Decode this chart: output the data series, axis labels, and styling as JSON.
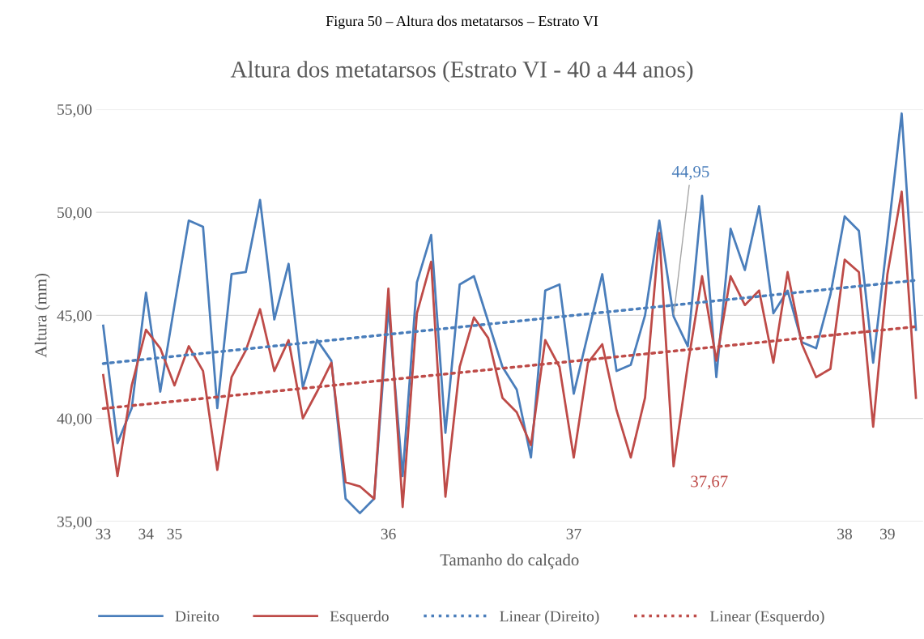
{
  "chart_data": {
    "type": "line",
    "title": "Figura 50 – Altura dos metatarsos – Estrato VI",
    "subtitle": "Altura dos metatarsos (Estrato VI - 40 a 44 anos)",
    "xlabel": "Tamanho do calçado",
    "ylabel": "Altura (mm)",
    "categories": [
      "33",
      null,
      null,
      "34",
      null,
      "35",
      null,
      null,
      null,
      null,
      null,
      null,
      null,
      null,
      null,
      null,
      null,
      null,
      null,
      null,
      "36",
      null,
      null,
      null,
      null,
      null,
      null,
      null,
      null,
      null,
      null,
      null,
      null,
      "37",
      null,
      null,
      null,
      null,
      null,
      null,
      null,
      null,
      null,
      null,
      null,
      null,
      null,
      null,
      null,
      null,
      null,
      null,
      "38",
      null,
      null,
      "39",
      null,
      null
    ],
    "series": [
      {
        "name": "Direito",
        "color": "#4a7ebb",
        "line_style": "solid",
        "values": [
          44.5,
          38.8,
          40.5,
          46.1,
          41.3,
          45.5,
          49.6,
          49.3,
          40.5,
          47.0,
          47.1,
          50.6,
          44.8,
          47.5,
          41.5,
          43.8,
          42.8,
          36.1,
          35.4,
          36.1,
          45.4,
          37.2,
          46.6,
          48.9,
          39.3,
          46.5,
          46.9,
          44.7,
          42.5,
          41.4,
          38.1,
          46.2,
          46.5,
          41.2,
          44.1,
          47.0,
          42.3,
          42.6,
          45.0,
          49.6,
          44.95,
          43.5,
          50.8,
          42.0,
          49.2,
          47.2,
          50.3,
          45.1,
          46.2,
          43.7,
          43.4,
          46.0,
          49.8,
          49.1,
          42.7,
          48.7,
          54.8,
          44.3
        ],
        "value_labels": [
          null,
          null,
          null,
          null,
          null,
          null,
          null,
          null,
          null,
          null,
          null,
          null,
          null,
          null,
          null,
          null,
          null,
          null,
          null,
          null,
          null,
          null,
          null,
          null,
          null,
          null,
          null,
          null,
          null,
          null,
          null,
          null,
          null,
          null,
          null,
          null,
          null,
          null,
          null,
          null,
          "44,95",
          null,
          null,
          null,
          null,
          null,
          null,
          null,
          null,
          null,
          null,
          null,
          null,
          null,
          null,
          null,
          null,
          null
        ]
      },
      {
        "name": "Esquerdo",
        "color": "#be4b48",
        "line_style": "solid",
        "values": [
          42.1,
          37.2,
          41.6,
          44.3,
          43.4,
          41.6,
          43.5,
          42.3,
          37.5,
          42.0,
          43.3,
          45.3,
          42.3,
          43.8,
          40.0,
          41.3,
          42.7,
          36.9,
          36.7,
          36.1,
          46.3,
          35.7,
          45.1,
          47.6,
          36.2,
          42.5,
          44.9,
          43.9,
          41.0,
          40.3,
          38.7,
          43.8,
          42.5,
          38.1,
          42.7,
          43.6,
          40.4,
          38.1,
          41.0,
          49.0,
          37.67,
          42.6,
          46.9,
          42.8,
          46.9,
          45.5,
          46.2,
          42.7,
          47.1,
          43.6,
          42.0,
          42.4,
          47.7,
          47.1,
          39.6,
          47.0,
          51.0,
          41.0
        ],
        "value_labels": [
          null,
          null,
          null,
          null,
          null,
          null,
          null,
          null,
          null,
          null,
          null,
          null,
          null,
          null,
          null,
          null,
          null,
          null,
          null,
          null,
          null,
          null,
          null,
          null,
          null,
          null,
          null,
          null,
          null,
          null,
          null,
          null,
          null,
          null,
          null,
          null,
          null,
          null,
          null,
          null,
          "37,67",
          null,
          null,
          null,
          null,
          null,
          null,
          null,
          null,
          null,
          null,
          null,
          null,
          null,
          null,
          null,
          null,
          null
        ]
      },
      {
        "name": "Linear (Direito)",
        "color": "#4a7ebb",
        "line_style": "dotted",
        "values": [
          42.66,
          null,
          null,
          null,
          null,
          null,
          null,
          null,
          null,
          null,
          null,
          null,
          null,
          null,
          null,
          null,
          null,
          null,
          null,
          null,
          null,
          null,
          null,
          null,
          null,
          null,
          null,
          null,
          null,
          null,
          null,
          null,
          null,
          null,
          null,
          null,
          null,
          null,
          null,
          null,
          null,
          null,
          null,
          null,
          null,
          null,
          null,
          null,
          null,
          null,
          null,
          null,
          null,
          null,
          null,
          null,
          null,
          46.7
        ]
      },
      {
        "name": "Linear (Esquerdo)",
        "color": "#be4b48",
        "line_style": "dotted",
        "values": [
          40.48,
          null,
          null,
          null,
          null,
          null,
          null,
          null,
          null,
          null,
          null,
          null,
          null,
          null,
          null,
          null,
          null,
          null,
          null,
          null,
          null,
          null,
          null,
          null,
          null,
          null,
          null,
          null,
          null,
          null,
          null,
          null,
          null,
          null,
          null,
          null,
          null,
          null,
          null,
          null,
          null,
          null,
          null,
          null,
          null,
          null,
          null,
          null,
          null,
          null,
          null,
          null,
          null,
          null,
          null,
          null,
          null,
          44.45
        ]
      }
    ],
    "ylim": [
      35,
      55
    ],
    "yticks": [
      {
        "value": 35,
        "label": "35,00"
      },
      {
        "value": 40,
        "label": "40,00"
      },
      {
        "value": 45,
        "label": "45,00"
      },
      {
        "value": 50,
        "label": "50,00"
      },
      {
        "value": 55,
        "label": "55,00"
      }
    ],
    "grid": "y",
    "legend": "bottom",
    "marker": "none"
  }
}
